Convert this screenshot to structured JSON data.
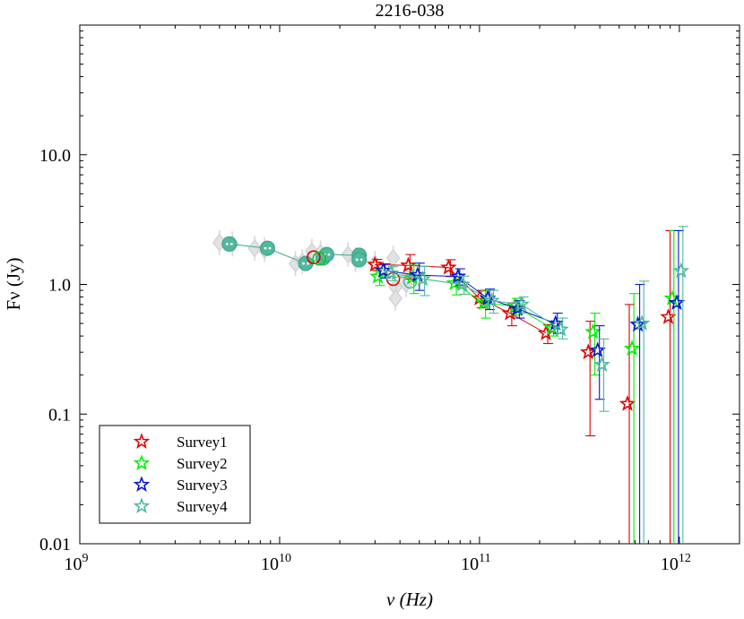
{
  "chart_data": {
    "type": "scatter",
    "title": "2216-038",
    "xlabel": "ν (Hz)",
    "ylabel": "Fν (Jy)",
    "x_scale": "log",
    "y_scale": "log",
    "xlim": [
      1000000000.0,
      2000000000000.0
    ],
    "ylim": [
      0.01,
      100
    ],
    "x_ticks": [
      {
        "value": 1000000000.0,
        "base": "10",
        "exp": "9"
      },
      {
        "value": 10000000000.0,
        "base": "10",
        "exp": "10"
      },
      {
        "value": 100000000000.0,
        "base": "10",
        "exp": "11"
      },
      {
        "value": 1000000000000.0,
        "base": "10",
        "exp": "12"
      }
    ],
    "y_ticks": [
      {
        "value": 0.01,
        "label": "0.01"
      },
      {
        "value": 0.1,
        "label": "0.1"
      },
      {
        "value": 1,
        "label": "1.0"
      },
      {
        "value": 10,
        "label": "10.0"
      }
    ],
    "grid": false,
    "legend_position": "bottom-left",
    "historical_points": [
      {
        "x": 5000000000.0,
        "y": 2.1
      },
      {
        "x": 5800000000.0,
        "y": 2.05
      },
      {
        "x": 7500000000.0,
        "y": 1.9
      },
      {
        "x": 8400000000.0,
        "y": 1.85
      },
      {
        "x": 12000000000.0,
        "y": 1.45
      },
      {
        "x": 13000000000.0,
        "y": 1.5
      },
      {
        "x": 14500000000.0,
        "y": 1.8
      },
      {
        "x": 16000000000.0,
        "y": 1.75
      },
      {
        "x": 22000000000.0,
        "y": 1.7
      },
      {
        "x": 24000000000.0,
        "y": 1.55
      },
      {
        "x": 30000000000.0,
        "y": 1.45
      },
      {
        "x": 37000000000.0,
        "y": 1.6
      },
      {
        "x": 38000000000.0,
        "y": 0.95
      },
      {
        "x": 38000000000.0,
        "y": 0.78
      },
      {
        "x": 43000000000.0,
        "y": 1.0
      },
      {
        "x": 43000000000.0,
        "y": 1.15
      }
    ],
    "reference_line": {
      "name": "teal-circles",
      "color": "#4fb89f",
      "points": [
        {
          "x": 5600000000.0,
          "y": 2.05
        },
        {
          "x": 8700000000.0,
          "y": 1.9
        },
        {
          "x": 13500000000.0,
          "y": 1.45
        },
        {
          "x": 16500000000.0,
          "y": 1.6
        },
        {
          "x": 17200000000.0,
          "y": 1.7
        },
        {
          "x": 25000000000.0,
          "y": 1.68
        },
        {
          "x": 25000000000.0,
          "y": 1.55
        }
      ]
    },
    "open_circles": [
      {
        "x": 14800000000.0,
        "y": 1.62,
        "color": "#e00000"
      },
      {
        "x": 15800000000.0,
        "y": 1.58,
        "color": "#00d000"
      },
      {
        "x": 37000000000.0,
        "y": 1.1,
        "color": "#e00000"
      },
      {
        "x": 45000000000.0,
        "y": 1.05,
        "color": "#4fb89f"
      }
    ],
    "series": [
      {
        "name": "Survey1",
        "color": "#e00000",
        "points": [
          {
            "x": 30000000000.0,
            "y": 1.42,
            "lo": 1.28,
            "hi": 1.56
          },
          {
            "x": 44000000000.0,
            "y": 1.4,
            "lo": 1.1,
            "hi": 1.7
          },
          {
            "x": 70000000000.0,
            "y": 1.35,
            "lo": 1.15,
            "hi": 1.55
          },
          {
            "x": 100000000000.0,
            "y": 0.78,
            "lo": 0.66,
            "hi": 0.9
          },
          {
            "x": 142000000000.0,
            "y": 0.6,
            "lo": 0.48,
            "hi": 0.72
          },
          {
            "x": 215000000000.0,
            "y": 0.42,
            "lo": 0.35,
            "hi": 0.49
          },
          {
            "x": 350000000000.0,
            "y": 0.3,
            "lo": 0.068,
            "hi": 0.52
          },
          {
            "x": 550000000000.0,
            "y": 0.12,
            "lo": 0.005,
            "hi": 0.7
          },
          {
            "x": 880000000000.0,
            "y": 0.56,
            "lo": 0.005,
            "hi": 2.6
          }
        ]
      },
      {
        "name": "Survey2",
        "color": "#00ee00",
        "points": [
          {
            "x": 31000000000.0,
            "y": 1.15,
            "lo": 0.98,
            "hi": 1.32
          },
          {
            "x": 46000000000.0,
            "y": 1.13,
            "lo": 0.85,
            "hi": 1.41
          },
          {
            "x": 75000000000.0,
            "y": 1.02,
            "lo": 0.83,
            "hi": 1.21
          },
          {
            "x": 105000000000.0,
            "y": 0.72,
            "lo": 0.55,
            "hi": 0.89
          },
          {
            "x": 150000000000.0,
            "y": 0.68,
            "lo": 0.58,
            "hi": 0.78
          },
          {
            "x": 230000000000.0,
            "y": 0.46,
            "lo": 0.4,
            "hi": 0.52
          },
          {
            "x": 370000000000.0,
            "y": 0.43,
            "lo": 0.2,
            "hi": 0.6
          },
          {
            "x": 580000000000.0,
            "y": 0.32,
            "lo": 0.005,
            "hi": 0.85
          },
          {
            "x": 920000000000.0,
            "y": 0.78,
            "lo": 0.005,
            "hi": 2.6
          }
        ]
      },
      {
        "name": "Survey3",
        "color": "#0018d0",
        "points": [
          {
            "x": 33000000000.0,
            "y": 1.28,
            "lo": 1.12,
            "hi": 1.44
          },
          {
            "x": 49000000000.0,
            "y": 1.18,
            "lo": 0.9,
            "hi": 1.46
          },
          {
            "x": 78000000000.0,
            "y": 1.15,
            "lo": 0.98,
            "hi": 1.32
          },
          {
            "x": 110000000000.0,
            "y": 0.78,
            "lo": 0.64,
            "hi": 0.92
          },
          {
            "x": 155000000000.0,
            "y": 0.65,
            "lo": 0.55,
            "hi": 0.75
          },
          {
            "x": 240000000000.0,
            "y": 0.5,
            "lo": 0.42,
            "hi": 0.6
          },
          {
            "x": 390000000000.0,
            "y": 0.31,
            "lo": 0.13,
            "hi": 0.48
          },
          {
            "x": 620000000000.0,
            "y": 0.49,
            "lo": 0.005,
            "hi": 1.0
          },
          {
            "x": 970000000000.0,
            "y": 0.72,
            "lo": 0.005,
            "hi": 2.6
          }
        ]
      },
      {
        "name": "Survey4",
        "color": "#4fb89f",
        "points": [
          {
            "x": 36000000000.0,
            "y": 1.22,
            "lo": 1.07,
            "hi": 1.37
          },
          {
            "x": 52000000000.0,
            "y": 1.1,
            "lo": 0.82,
            "hi": 1.38
          },
          {
            "x": 82000000000.0,
            "y": 1.0,
            "lo": 0.84,
            "hi": 1.16
          },
          {
            "x": 115000000000.0,
            "y": 0.75,
            "lo": 0.6,
            "hi": 0.9
          },
          {
            "x": 162000000000.0,
            "y": 0.7,
            "lo": 0.6,
            "hi": 0.8
          },
          {
            "x": 255000000000.0,
            "y": 0.45,
            "lo": 0.38,
            "hi": 0.55
          },
          {
            "x": 410000000000.0,
            "y": 0.24,
            "lo": 0.105,
            "hi": 0.38
          },
          {
            "x": 650000000000.0,
            "y": 0.5,
            "lo": 0.005,
            "hi": 1.06
          },
          {
            "x": 1020000000000.0,
            "y": 1.27,
            "lo": 0.005,
            "hi": 2.8
          }
        ]
      }
    ]
  }
}
